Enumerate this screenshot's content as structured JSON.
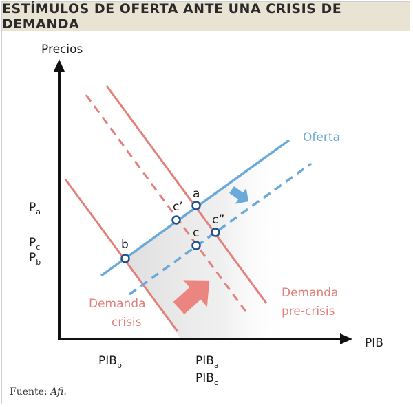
{
  "title": "ESTÍMULOS DE OFERTA ANTE UNA CRISIS DE DEMANDA",
  "axes": {
    "y_label": "Precios",
    "x_label": "PIB"
  },
  "y_ticks": [
    {
      "main": "P",
      "sub": "a"
    },
    {
      "main": "P",
      "sub": "c"
    },
    {
      "main": "P",
      "sub": "b"
    }
  ],
  "x_ticks": [
    {
      "main": "PIB",
      "sub": "b"
    },
    {
      "main": "PIB",
      "sub": "a"
    },
    {
      "main": "PIB",
      "sub": "c"
    }
  ],
  "curves": {
    "supply": {
      "label": "Oferta",
      "color": "#6aaad8"
    },
    "demand_crisis": {
      "label_line1": "Demanda",
      "label_line2": "crisis",
      "color": "#e3807b"
    },
    "demand_precrisis": {
      "label_line1": "Demanda",
      "label_line2": "pre-crisis",
      "color": "#e3807b"
    }
  },
  "points": {
    "a": "a",
    "b": "b",
    "c": "c",
    "c_prime": "c’",
    "c_double": "c”"
  },
  "source": {
    "prefix": "Fuente: ",
    "name": "Afi."
  }
}
